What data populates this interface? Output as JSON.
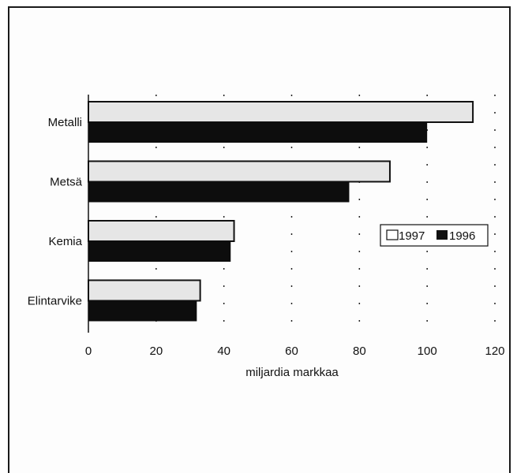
{
  "chart_data": {
    "type": "bar",
    "orientation": "horizontal",
    "categories": [
      "Metalli",
      "Metsä",
      "Kemia",
      "Elintarvike"
    ],
    "series": [
      {
        "name": "1997",
        "values": [
          113.5,
          89,
          43,
          33
        ],
        "color": "#e6e6e6"
      },
      {
        "name": "1996",
        "values": [
          100,
          77,
          42,
          32
        ],
        "color": "#0d0d0d"
      }
    ],
    "xlabel": "miljardia markkaa",
    "ylabel": "",
    "xlim": [
      0,
      120
    ],
    "xticks": [
      "0",
      "20",
      "40",
      "60",
      "80",
      "100",
      "120"
    ],
    "grid": "dotted vertical",
    "legend": "right"
  }
}
